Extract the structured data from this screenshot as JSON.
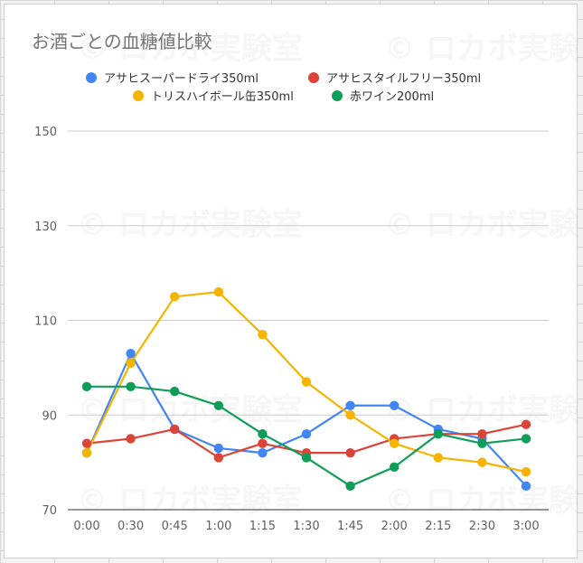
{
  "chart_data": {
    "type": "line",
    "title": "お酒ごとの血糖値比較",
    "watermark": "© ロカボ実験室",
    "categories": [
      "0:00",
      "0:30",
      "0:45",
      "1:00",
      "1:15",
      "1:30",
      "1:45",
      "2:00",
      "2:15",
      "2:30",
      "3:00"
    ],
    "ylim": [
      70,
      150
    ],
    "yticks": [
      70,
      90,
      110,
      130,
      150
    ],
    "grid": true,
    "legend_position": "top",
    "series": [
      {
        "name": "アサヒスーパードライ350ml",
        "color": "#4285f4",
        "values": [
          82,
          103,
          87,
          83,
          82,
          86,
          92,
          92,
          87,
          85,
          75
        ]
      },
      {
        "name": "アサヒスタイルフリー350ml",
        "color": "#db4437",
        "values": [
          84,
          85,
          87,
          81,
          84,
          82,
          82,
          85,
          86,
          86,
          88
        ]
      },
      {
        "name": "トリスハイボール缶350ml",
        "color": "#f4b400",
        "values": [
          82,
          101,
          115,
          116,
          107,
          97,
          90,
          84,
          81,
          80,
          78
        ]
      },
      {
        "name": "赤ワイン200ml",
        "color": "#0f9d58",
        "values": [
          96,
          96,
          95,
          92,
          86,
          81,
          75,
          79,
          86,
          84,
          85
        ]
      }
    ]
  }
}
